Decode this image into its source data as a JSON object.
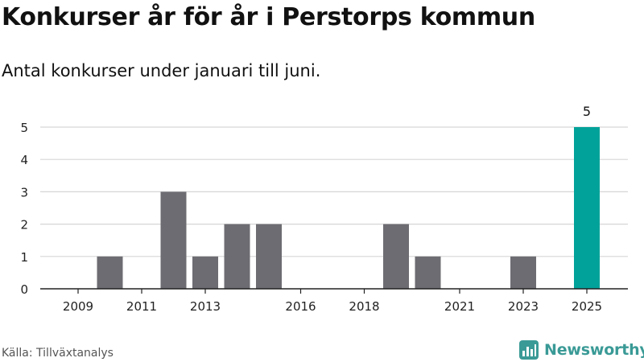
{
  "header": {
    "title": "Konkurser år för år i Perstorps kommun",
    "subtitle": "Antal konkurser under januari till juni."
  },
  "footer": {
    "source": "Källa: Tillväxtanalys",
    "brand_name": "Newsworthy",
    "brand_icon": "newsworthy-logo-icon"
  },
  "colors": {
    "bar_default": "#6d6c72",
    "bar_highlight": "#00a29a",
    "grid": "#d6d6d6",
    "axis": "#222222",
    "brand": "#3a9a96"
  },
  "chart_data": {
    "type": "bar",
    "categories": [
      "2009",
      "2010",
      "2011",
      "2012",
      "2013",
      "2014",
      "2015",
      "2016",
      "2017",
      "2018",
      "2019",
      "2020",
      "2021",
      "2022",
      "2023",
      "2024",
      "2025"
    ],
    "values": [
      0,
      1,
      0,
      3,
      1,
      2,
      2,
      0,
      0,
      0,
      2,
      1,
      0,
      0,
      1,
      0,
      5
    ],
    "highlight_category": "2025",
    "data_labels": [
      {
        "category": "2025",
        "text": "5"
      }
    ],
    "xtick_labels": [
      "2009",
      "2011",
      "2013",
      "2016",
      "2018",
      "2021",
      "2023",
      "2025"
    ],
    "ytick_labels": [
      "0",
      "1",
      "2",
      "3",
      "4",
      "5"
    ],
    "ylim": [
      0,
      5
    ],
    "xlabel": "",
    "ylabel": "",
    "grid": true,
    "legend": "none"
  }
}
